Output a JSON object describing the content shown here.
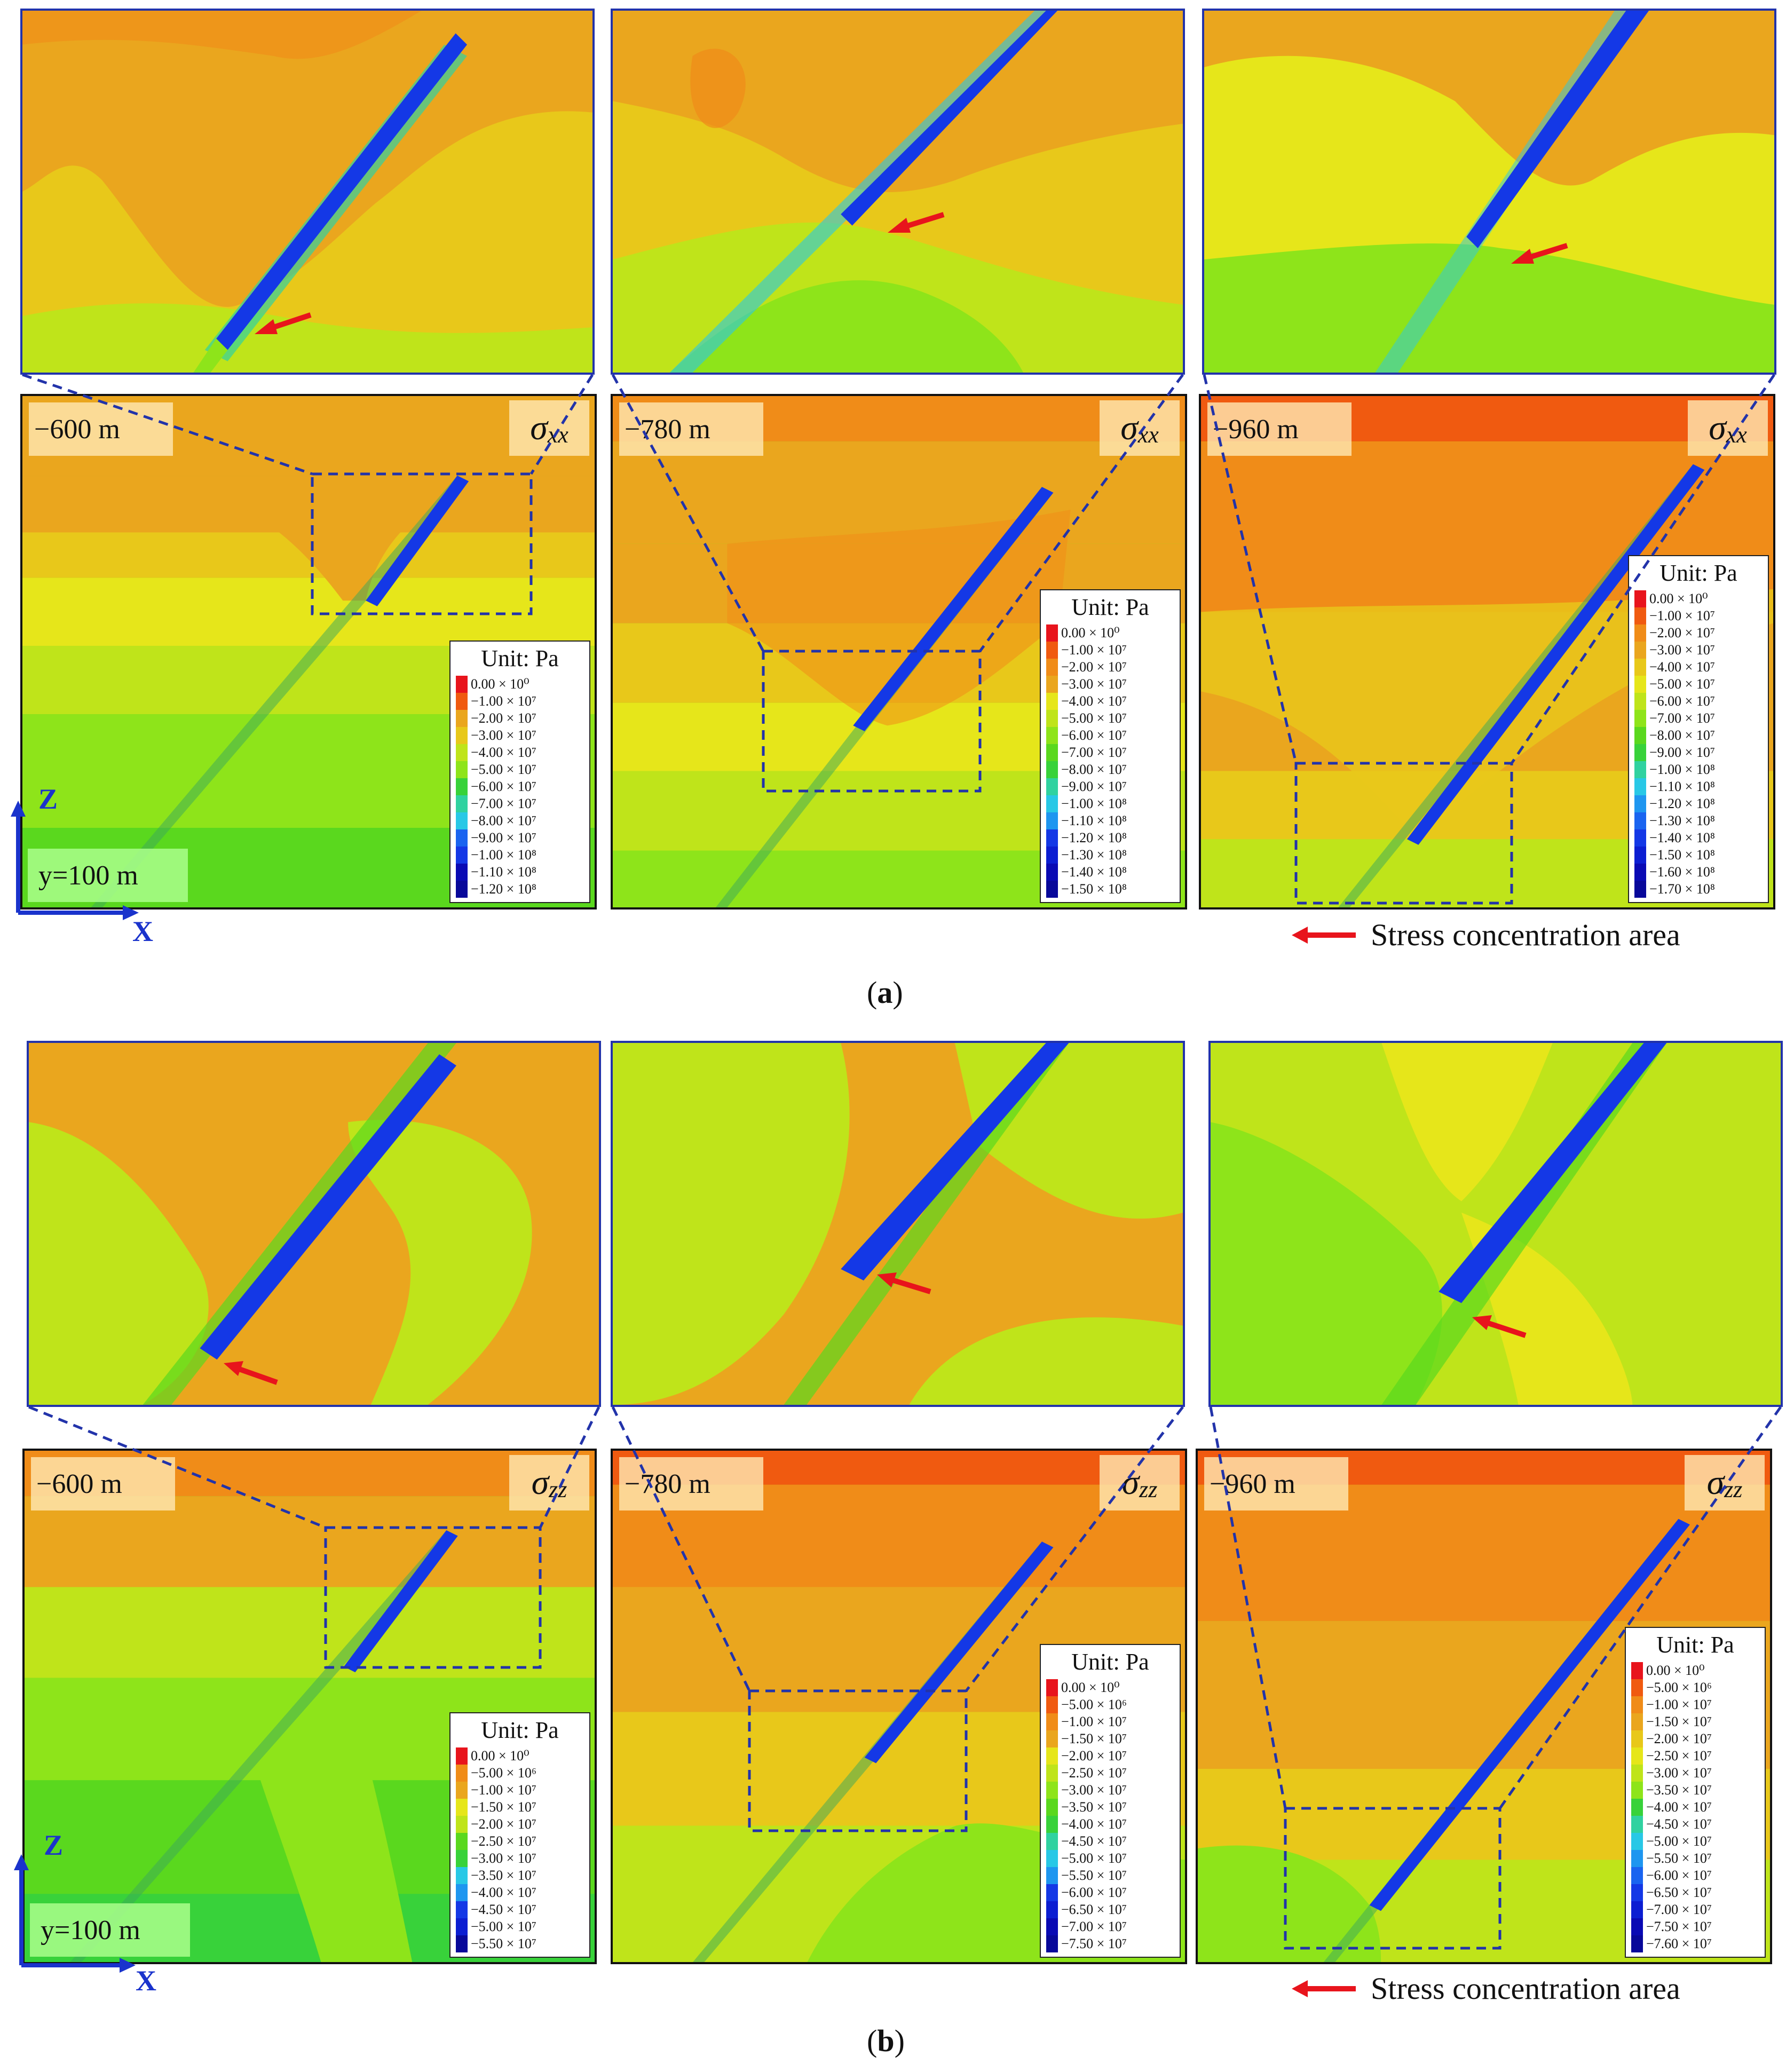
{
  "figure": {
    "part_a": {
      "caption_letter": "a",
      "component_symbol": "σ",
      "component_sub": "xx",
      "coord_label": "y=100 m",
      "axis_z": "Z",
      "axis_x": "X",
      "panels": [
        {
          "depth": "−600 m",
          "unit": "Unit: Pa",
          "legend": [
            "0.00 × 10⁰",
            "−1.00 × 10⁷",
            "−2.00 × 10⁷",
            "−3.00 × 10⁷",
            "−4.00 × 10⁷",
            "−5.00 × 10⁷",
            "−6.00 × 10⁷",
            "−7.00 × 10⁷",
            "−8.00 × 10⁷",
            "−9.00 × 10⁷",
            "−1.00 × 10⁸",
            "−1.10 × 10⁸",
            "−1.20 × 10⁸"
          ]
        },
        {
          "depth": "−780 m",
          "unit": "Unit: Pa",
          "legend": [
            "0.00 × 10⁰",
            "−1.00 × 10⁷",
            "−2.00 × 10⁷",
            "−3.00 × 10⁷",
            "−4.00 × 10⁷",
            "−5.00 × 10⁷",
            "−6.00 × 10⁷",
            "−7.00 × 10⁷",
            "−8.00 × 10⁷",
            "−9.00 × 10⁷",
            "−1.00 × 10⁸",
            "−1.10 × 10⁸",
            "−1.20 × 10⁸",
            "−1.30 × 10⁸",
            "−1.40 × 10⁸",
            "−1.50 × 10⁸"
          ]
        },
        {
          "depth": "−960 m",
          "unit": "Unit: Pa",
          "legend": [
            "0.00 × 10⁰",
            "−1.00 × 10⁷",
            "−2.00 × 10⁷",
            "−3.00 × 10⁷",
            "−4.00 × 10⁷",
            "−5.00 × 10⁷",
            "−6.00 × 10⁷",
            "−7.00 × 10⁷",
            "−8.00 × 10⁷",
            "−9.00 × 10⁷",
            "−1.00 × 10⁸",
            "−1.10 × 10⁸",
            "−1.20 × 10⁸",
            "−1.30 × 10⁸",
            "−1.40 × 10⁸",
            "−1.50 × 10⁸",
            "−1.60 × 10⁸",
            "−1.70 × 10⁸"
          ]
        }
      ],
      "stress_note": "Stress concentration area"
    },
    "part_b": {
      "caption_letter": "b",
      "component_symbol": "σ",
      "component_sub": "zz",
      "coord_label": "y=100 m",
      "axis_z": "Z",
      "axis_x": "X",
      "panels": [
        {
          "depth": "−600 m",
          "unit": "Unit: Pa",
          "legend": [
            "0.00 × 10⁰",
            "−5.00 × 10⁶",
            "−1.00 × 10⁷",
            "−1.50 × 10⁷",
            "−2.00 × 10⁷",
            "−2.50 × 10⁷",
            "−3.00 × 10⁷",
            "−3.50 × 10⁷",
            "−4.00 × 10⁷",
            "−4.50 × 10⁷",
            "−5.00 × 10⁷",
            "−5.50 × 10⁷"
          ]
        },
        {
          "depth": "−780 m",
          "unit": "Unit: Pa",
          "legend": [
            "0.00 × 10⁰",
            "−5.00 × 10⁶",
            "−1.00 × 10⁷",
            "−1.50 × 10⁷",
            "−2.00 × 10⁷",
            "−2.50 × 10⁷",
            "−3.00 × 10⁷",
            "−3.50 × 10⁷",
            "−4.00 × 10⁷",
            "−4.50 × 10⁷",
            "−5.00 × 10⁷",
            "−5.50 × 10⁷",
            "−6.00 × 10⁷",
            "−6.50 × 10⁷",
            "−7.00 × 10⁷",
            "−7.50 × 10⁷"
          ]
        },
        {
          "depth": "−960 m",
          "unit": "Unit: Pa",
          "legend": [
            "0.00 × 10⁰",
            "−5.00 × 10⁶",
            "−1.00 × 10⁷",
            "−1.50 × 10⁷",
            "−2.00 × 10⁷",
            "−2.50 × 10⁷",
            "−3.00 × 10⁷",
            "−3.50 × 10⁷",
            "−4.00 × 10⁷",
            "−4.50 × 10⁷",
            "−5.00 × 10⁷",
            "−5.50 × 10⁷",
            "−6.00 × 10⁷",
            "−6.50 × 10⁷",
            "−7.00 × 10⁷",
            "−7.50 × 10⁷",
            "−7.60 × 10⁷"
          ]
        }
      ],
      "stress_note": "Stress concentration area"
    },
    "colors": {
      "arrow": "#e8141c",
      "dashed_box": "#2233aa",
      "axis": "#1a33cc",
      "scale": [
        "#e8141c",
        "#f05a10",
        "#f08c18",
        "#eaa61e",
        "#e8c81a",
        "#e6e61a",
        "#bfe41a",
        "#8ee41a",
        "#5ad81e",
        "#38d23a",
        "#30d2a0",
        "#28c8e6",
        "#1e96f0",
        "#1a64f0",
        "#1438e6",
        "#0c1ed2",
        "#0a0ab4",
        "#08089a"
      ]
    }
  }
}
